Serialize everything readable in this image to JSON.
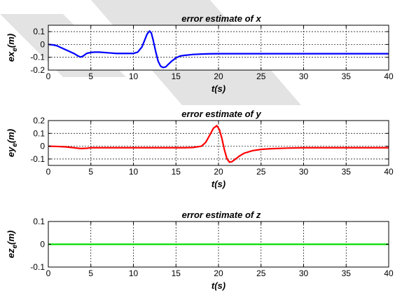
{
  "chart_data": [
    {
      "type": "line",
      "title": "error estimate of x",
      "xlabel": "t(s)",
      "ylabel": "ex",
      "ylabel_sub": "e",
      "ylabel_suffix": "(m)",
      "xlim": [
        0,
        40
      ],
      "ylim": [
        -0.2,
        0.15
      ],
      "xticks": [
        0,
        5,
        10,
        15,
        20,
        25,
        30,
        35,
        40
      ],
      "yticks": [
        -0.2,
        -0.1,
        0,
        0.1
      ],
      "ytick_labels": [
        "-0.2",
        "-0.1",
        "0",
        "0.1"
      ],
      "grid": true,
      "series": [
        {
          "color": "#0000ff",
          "x": [
            0,
            0.5,
            1,
            1.5,
            2,
            2.5,
            3,
            3.5,
            3.8,
            4.1,
            4.5,
            5,
            5.5,
            6,
            7,
            8,
            9,
            10,
            10.5,
            11,
            11.3,
            11.6,
            11.9,
            12.1,
            12.3,
            12.6,
            12.9,
            13.2,
            13.5,
            13.8,
            14.1,
            14.5,
            15,
            15.5,
            16,
            17,
            18,
            19,
            20,
            22,
            25,
            30,
            35,
            40
          ],
          "y": [
            0.0,
            -0.003,
            -0.01,
            -0.025,
            -0.04,
            -0.055,
            -0.07,
            -0.09,
            -0.098,
            -0.09,
            -0.07,
            -0.062,
            -0.06,
            -0.06,
            -0.065,
            -0.07,
            -0.07,
            -0.07,
            -0.06,
            -0.02,
            0.03,
            0.08,
            0.105,
            0.09,
            0.04,
            -0.05,
            -0.13,
            -0.17,
            -0.18,
            -0.175,
            -0.155,
            -0.13,
            -0.105,
            -0.09,
            -0.085,
            -0.078,
            -0.075,
            -0.073,
            -0.072,
            -0.072,
            -0.072,
            -0.072,
            -0.072,
            -0.072
          ]
        }
      ]
    },
    {
      "type": "line",
      "title": "error estimate of y",
      "xlabel": "t(s)",
      "ylabel": "ey",
      "ylabel_sub": "e",
      "ylabel_suffix": "(m)",
      "xlim": [
        0,
        40
      ],
      "ylim": [
        -0.15,
        0.2
      ],
      "xticks": [
        0,
        5,
        10,
        15,
        20,
        25,
        30,
        35,
        40
      ],
      "yticks": [
        -0.1,
        0,
        0.1,
        0.2
      ],
      "ytick_labels": [
        "-0.1",
        "0",
        "0.1",
        "0.2"
      ],
      "grid": true,
      "series": [
        {
          "color": "#ff0000",
          "x": [
            0,
            1,
            2,
            3,
            3.8,
            4.5,
            5,
            6,
            8,
            10,
            12,
            14,
            16,
            17,
            18,
            18.5,
            19,
            19.4,
            19.8,
            20.1,
            20.4,
            20.7,
            21,
            21.3,
            21.6,
            22,
            22.5,
            23,
            24,
            25,
            26,
            28,
            30,
            35,
            40
          ],
          "y": [
            0.0,
            -0.002,
            -0.005,
            -0.012,
            -0.018,
            -0.016,
            -0.012,
            -0.012,
            -0.012,
            -0.012,
            -0.012,
            -0.012,
            -0.012,
            -0.01,
            0.0,
            0.03,
            0.09,
            0.14,
            0.16,
            0.13,
            0.06,
            -0.03,
            -0.1,
            -0.125,
            -0.12,
            -0.1,
            -0.075,
            -0.055,
            -0.035,
            -0.025,
            -0.02,
            -0.015,
            -0.012,
            -0.012,
            -0.012
          ]
        }
      ]
    },
    {
      "type": "line",
      "title": "error estimate of z",
      "xlabel": "t(s)",
      "ylabel": "ez",
      "ylabel_sub": "e",
      "ylabel_suffix": "(m)",
      "xlim": [
        0,
        40
      ],
      "ylim": [
        -0.1,
        0.1
      ],
      "xticks": [
        0,
        5,
        10,
        15,
        20,
        25,
        30,
        35,
        40
      ],
      "yticks": [
        -0.1,
        0,
        0.1
      ],
      "ytick_labels": [
        "-0.1",
        "0",
        "0.1"
      ],
      "grid": true,
      "series": [
        {
          "color": "#00dd00",
          "x": [
            0,
            40
          ],
          "y": [
            0,
            0
          ]
        }
      ]
    }
  ]
}
